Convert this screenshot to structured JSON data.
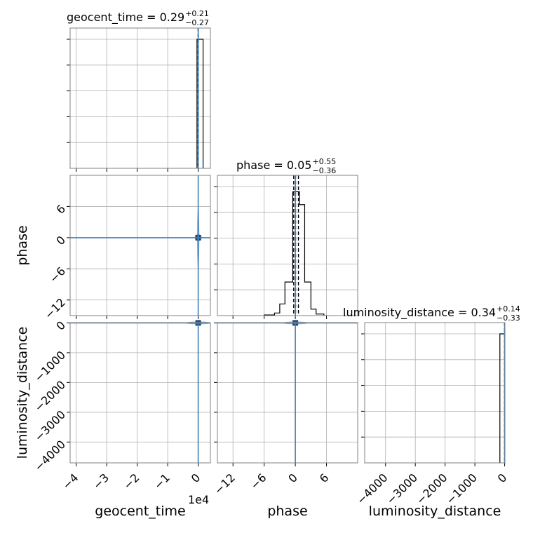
{
  "chart_data": {
    "type": "corner",
    "parameters": [
      "geocent_time",
      "phase",
      "luminosity_distance"
    ],
    "titles": [
      {
        "param": "geocent_time",
        "text": "geocent_time = 0.29",
        "upper": "+0.21",
        "lower": "−0.27"
      },
      {
        "param": "phase",
        "text": "phase = 0.05",
        "upper": "+0.55",
        "lower": "−0.36"
      },
      {
        "param": "luminosity_distance",
        "text": "luminosity_distance = 0.34",
        "upper": "+0.14",
        "lower": "−0.33"
      }
    ],
    "axes": {
      "geocent_time": {
        "range": [
          -42000,
          4000
        ],
        "ticks": [
          -40000,
          -30000,
          -20000,
          -10000,
          0
        ],
        "tick_labels": [
          "−4",
          "−3",
          "−2",
          "−1",
          "0"
        ],
        "offset_label": "1e4"
      },
      "phase": {
        "range": [
          -15,
          12
        ],
        "ticks": [
          -12,
          -6,
          0,
          6
        ],
        "tick_labels": [
          "−12",
          "−6",
          "0",
          "6"
        ]
      },
      "luminosity_distance": {
        "range": [
          -4700,
          10
        ],
        "ticks": [
          -4000,
          -3000,
          -2000,
          -1000,
          0
        ],
        "tick_labels": [
          "−4000",
          "−3000",
          "−2000",
          "−1000",
          "0"
        ]
      }
    },
    "histograms": {
      "geocent_time": {
        "bins": [
          [
            -400,
            200,
            1.0
          ],
          [
            200,
            1600,
            1.0
          ]
        ],
        "quantiles": [
          0.02,
          0.29,
          0.5
        ],
        "ymax": 1.0
      },
      "phase": {
        "bins": [
          [
            -6,
            -4,
            0.005
          ],
          [
            -4,
            -3,
            0.02
          ],
          [
            -3,
            -2,
            0.09
          ],
          [
            -2,
            -0.5,
            0.26
          ],
          [
            -0.5,
            0.8,
            0.96
          ],
          [
            0.8,
            1.8,
            0.86
          ],
          [
            1.8,
            3,
            0.26
          ],
          [
            3,
            4,
            0.05
          ],
          [
            4,
            5.5,
            0.012
          ]
        ],
        "quantiles": [
          -0.31,
          0.05,
          0.6
        ],
        "ymax": 1.0
      },
      "luminosity_distance": {
        "bins": [
          [
            -160,
            -20,
            1.0
          ],
          [
            -20,
            0,
            1.0
          ]
        ],
        "quantiles": [
          0.01,
          0.34,
          0.48
        ],
        "ymax": 1.0
      }
    },
    "truths": {
      "geocent_time": 0,
      "phase": 0,
      "luminosity_distance": 0
    },
    "grid": true
  }
}
